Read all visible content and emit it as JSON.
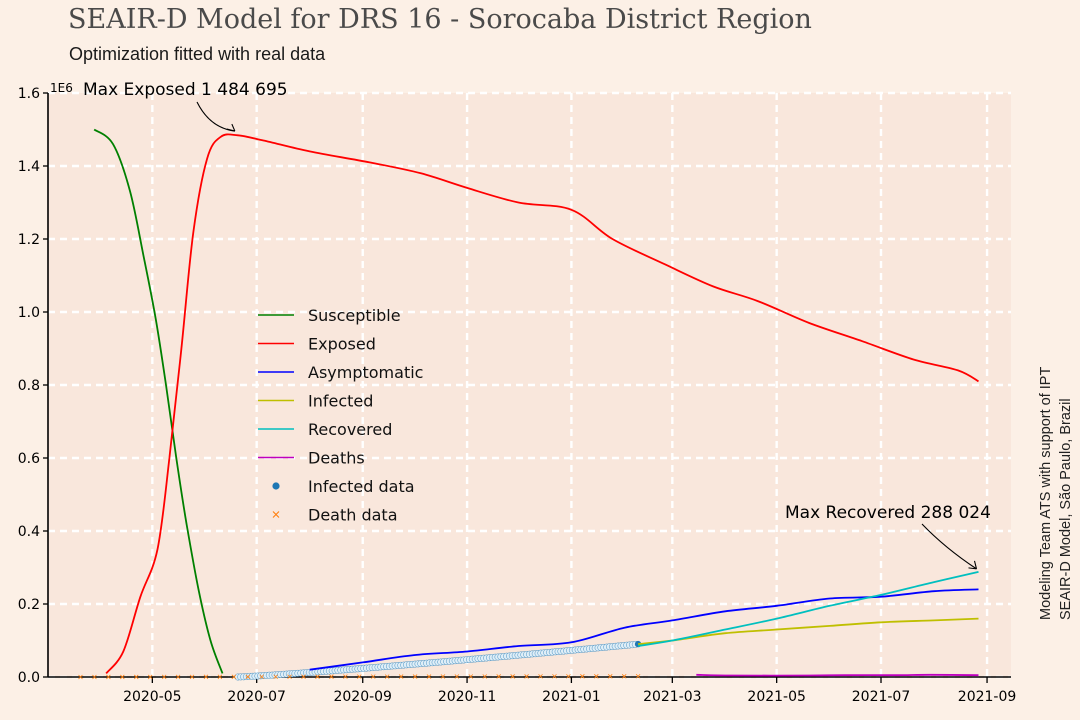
{
  "header": {
    "title": "SEAIR-D Model for DRS 16 - Sorocaba District Region",
    "subtitle": "Optimization fitted with real data"
  },
  "credits": {
    "line1": "Modeling Team ATS with support of IPT",
    "line2": "SEAIR-D Model, São Paulo, Brazil"
  },
  "chart_data": {
    "type": "line",
    "y_scale_label": "1E6",
    "xlim": [
      "2020-03-01",
      "2021-09-15"
    ],
    "ylim": [
      0,
      1.6
    ],
    "x_ticks": [
      "2020-05",
      "2020-07",
      "2020-09",
      "2020-11",
      "2021-01",
      "2021-03",
      "2021-05",
      "2021-07",
      "2021-09"
    ],
    "y_ticks": [
      "0.0",
      "0.2",
      "0.4",
      "0.6",
      "0.8",
      "1.0",
      "1.2",
      "1.4",
      "1.6"
    ],
    "grid": true,
    "legend_position": "center-left",
    "colors": {
      "Susceptible": "#008000",
      "Exposed": "#ff0000",
      "Asymptomatic": "#0000ff",
      "Infected": "#bfbf00",
      "Recovered": "#00bfbf",
      "Deaths": "#bf00bf",
      "Infected data": "#1f77b4",
      "Death data": "#ff7f0e"
    },
    "series": [
      {
        "name": "Susceptible",
        "points": [
          [
            "2020-03-28",
            1.5
          ],
          [
            "2020-04-08",
            1.46
          ],
          [
            "2020-04-18",
            1.33
          ],
          [
            "2020-04-26",
            1.15
          ],
          [
            "2020-05-03",
            0.98
          ],
          [
            "2020-05-09",
            0.8
          ],
          [
            "2020-05-15",
            0.6
          ],
          [
            "2020-05-21",
            0.42
          ],
          [
            "2020-05-28",
            0.24
          ],
          [
            "2020-06-04",
            0.1
          ],
          [
            "2020-06-11",
            0.01
          ]
        ]
      },
      {
        "name": "Exposed",
        "points": [
          [
            "2020-04-04",
            0.01
          ],
          [
            "2020-04-14",
            0.07
          ],
          [
            "2020-04-24",
            0.22
          ],
          [
            "2020-05-04",
            0.35
          ],
          [
            "2020-05-11",
            0.6
          ],
          [
            "2020-05-18",
            0.9
          ],
          [
            "2020-05-25",
            1.22
          ],
          [
            "2020-06-02",
            1.42
          ],
          [
            "2020-06-10",
            1.48
          ],
          [
            "2020-06-20",
            1.484
          ],
          [
            "2020-07-05",
            1.47
          ],
          [
            "2020-08-01",
            1.44
          ],
          [
            "2020-09-05",
            1.41
          ],
          [
            "2020-10-05",
            1.38
          ],
          [
            "2020-11-01",
            1.34
          ],
          [
            "2020-12-01",
            1.3
          ],
          [
            "2021-01-01",
            1.28
          ],
          [
            "2021-01-25",
            1.2
          ],
          [
            "2021-02-25",
            1.13
          ],
          [
            "2021-03-25",
            1.07
          ],
          [
            "2021-04-20",
            1.03
          ],
          [
            "2021-05-20",
            0.97
          ],
          [
            "2021-06-20",
            0.92
          ],
          [
            "2021-07-20",
            0.87
          ],
          [
            "2021-08-15",
            0.84
          ],
          [
            "2021-08-27",
            0.81
          ]
        ]
      },
      {
        "name": "Asymptomatic",
        "points": [
          [
            "2020-08-01",
            0.02
          ],
          [
            "2020-09-01",
            0.04
          ],
          [
            "2020-10-01",
            0.06
          ],
          [
            "2020-11-01",
            0.07
          ],
          [
            "2020-12-01",
            0.085
          ],
          [
            "2021-01-01",
            0.095
          ],
          [
            "2021-02-01",
            0.135
          ],
          [
            "2021-03-01",
            0.155
          ],
          [
            "2021-04-01",
            0.18
          ],
          [
            "2021-05-01",
            0.195
          ],
          [
            "2021-06-01",
            0.215
          ],
          [
            "2021-07-01",
            0.22
          ],
          [
            "2021-08-01",
            0.235
          ],
          [
            "2021-08-27",
            0.24
          ]
        ]
      },
      {
        "name": "Infected",
        "points": [
          [
            "2021-02-09",
            0.09
          ],
          [
            "2021-03-01",
            0.1
          ],
          [
            "2021-04-01",
            0.12
          ],
          [
            "2021-05-01",
            0.13
          ],
          [
            "2021-06-01",
            0.14
          ],
          [
            "2021-07-01",
            0.15
          ],
          [
            "2021-08-01",
            0.155
          ],
          [
            "2021-08-27",
            0.16
          ]
        ]
      },
      {
        "name": "Recovered",
        "points": [
          [
            "2021-02-09",
            0.085
          ],
          [
            "2021-03-01",
            0.1
          ],
          [
            "2021-04-01",
            0.13
          ],
          [
            "2021-05-01",
            0.16
          ],
          [
            "2021-06-01",
            0.195
          ],
          [
            "2021-07-01",
            0.225
          ],
          [
            "2021-08-01",
            0.26
          ],
          [
            "2021-08-27",
            0.288
          ]
        ]
      },
      {
        "name": "Deaths",
        "points": [
          [
            "2021-03-15",
            0.006
          ],
          [
            "2021-04-05",
            0.004
          ],
          [
            "2021-05-20",
            0.004
          ],
          [
            "2021-06-10",
            0.005
          ],
          [
            "2021-07-10",
            0.005
          ],
          [
            "2021-07-30",
            0.006
          ],
          [
            "2021-08-27",
            0.005
          ]
        ]
      }
    ],
    "infected_data": {
      "name": "Infected data",
      "x_range": [
        "2020-06-20",
        "2021-02-09"
      ],
      "y_range": [
        0.0,
        0.09
      ]
    },
    "death_data": {
      "name": "Death data",
      "x_range": [
        "2020-03-20",
        "2021-02-09"
      ],
      "y_range": [
        0.0,
        0.002
      ]
    },
    "annotations": [
      {
        "text": "Max Exposed 1 484 695",
        "x": "2020-06-20",
        "y": 1.484695
      },
      {
        "text": "Max Recovered 288 024",
        "x": "2021-08-27",
        "y": 0.288024
      }
    ]
  }
}
